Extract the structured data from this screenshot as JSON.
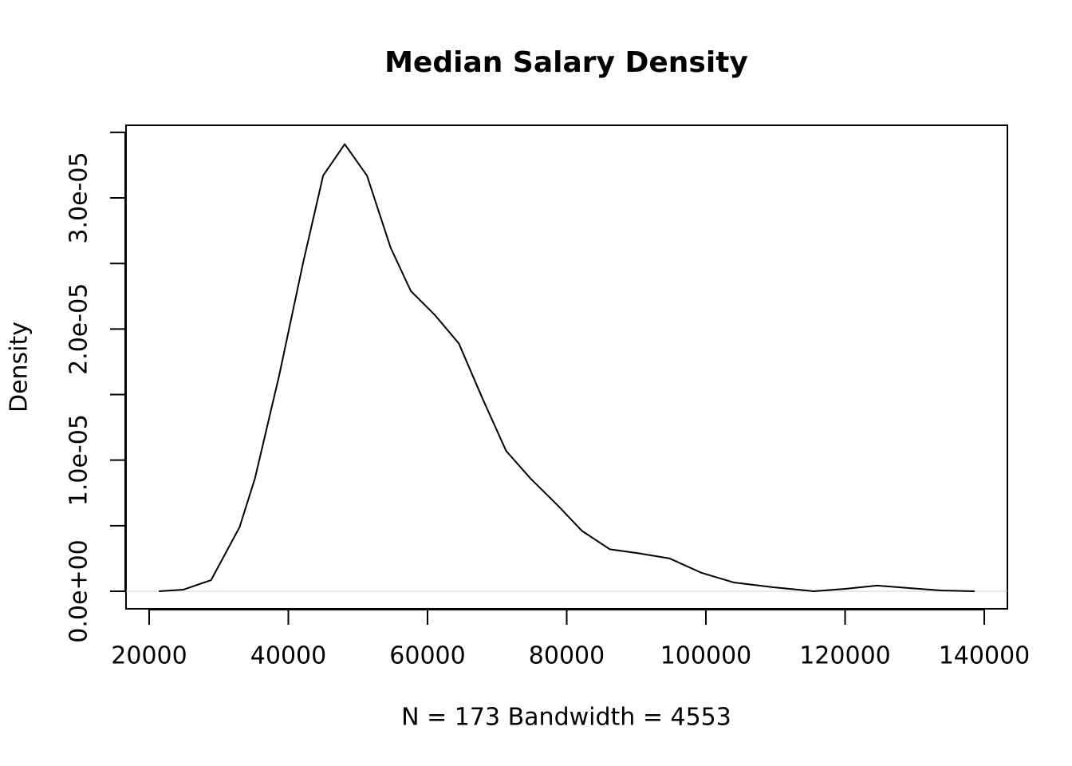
{
  "chart_data": {
    "type": "line",
    "title": "Median Salary Density",
    "xlabel": "N = 173   Bandwidth = 4553",
    "ylabel": "Density",
    "x": [
      21400,
      24900,
      28900,
      33000,
      35200,
      38700,
      42100,
      45000,
      48100,
      51300,
      54700,
      57600,
      61000,
      64500,
      67900,
      71300,
      74800,
      78800,
      82200,
      86200,
      90300,
      94800,
      99400,
      104000,
      109700,
      115500,
      120000,
      124600,
      129200,
      133800,
      138600
    ],
    "series": [
      {
        "name": "Density",
        "color": "#000000",
        "values": [
          0,
          1.2e-07,
          8.5e-07,
          4.9e-06,
          8.6e-06,
          1.65e-05,
          2.5e-05,
          3.17e-05,
          3.41e-05,
          3.17e-05,
          2.62e-05,
          2.29e-05,
          2.11e-05,
          1.89e-05,
          1.47e-05,
          1.07e-05,
          8.6e-06,
          6.5e-06,
          4.6e-06,
          3.2e-06,
          2.9e-06,
          2.5e-06,
          1.4e-06,
          6.7e-07,
          3e-07,
          0,
          1.8e-07,
          4.3e-07,
          2.4e-07,
          6e-08,
          0
        ]
      }
    ],
    "xlim": [
      16676,
      143324
    ],
    "ylim": [
      -1.34e-06,
      3.554e-05
    ],
    "xticks": [
      20000,
      40000,
      60000,
      80000,
      100000,
      120000,
      140000
    ],
    "yticks": [
      {
        "value": 0,
        "label": "0.0e+00"
      },
      {
        "value": 1e-05,
        "label": "1.0e-05"
      },
      {
        "value": 2e-05,
        "label": "2.0e-05"
      },
      {
        "value": 3e-05,
        "label": "3.0e-05"
      }
    ],
    "yticks_minor": [
      5e-06,
      1.5e-05,
      2.5e-05,
      3.5e-05
    ],
    "zero_line": true
  }
}
